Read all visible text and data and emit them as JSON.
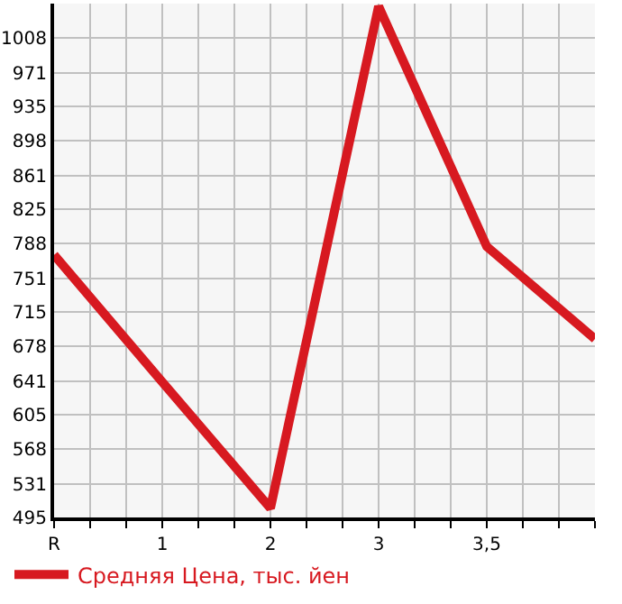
{
  "chart_data": {
    "type": "line",
    "categories": [
      "R",
      "1",
      "2",
      "3",
      "3,5",
      null
    ],
    "series": [
      {
        "name": "Средняя Цена, тыс. йен",
        "color": "#d71920",
        "values": [
          776,
          640,
          505,
          1042,
          785,
          686
        ]
      }
    ],
    "ylim": [
      495,
      1045
    ],
    "yticks": [
      495,
      531,
      568,
      605,
      641,
      678,
      715,
      751,
      788,
      825,
      861,
      898,
      935,
      971,
      1008
    ],
    "grid": true,
    "legend": "bottom",
    "marker": "none",
    "line_style": "solid"
  }
}
